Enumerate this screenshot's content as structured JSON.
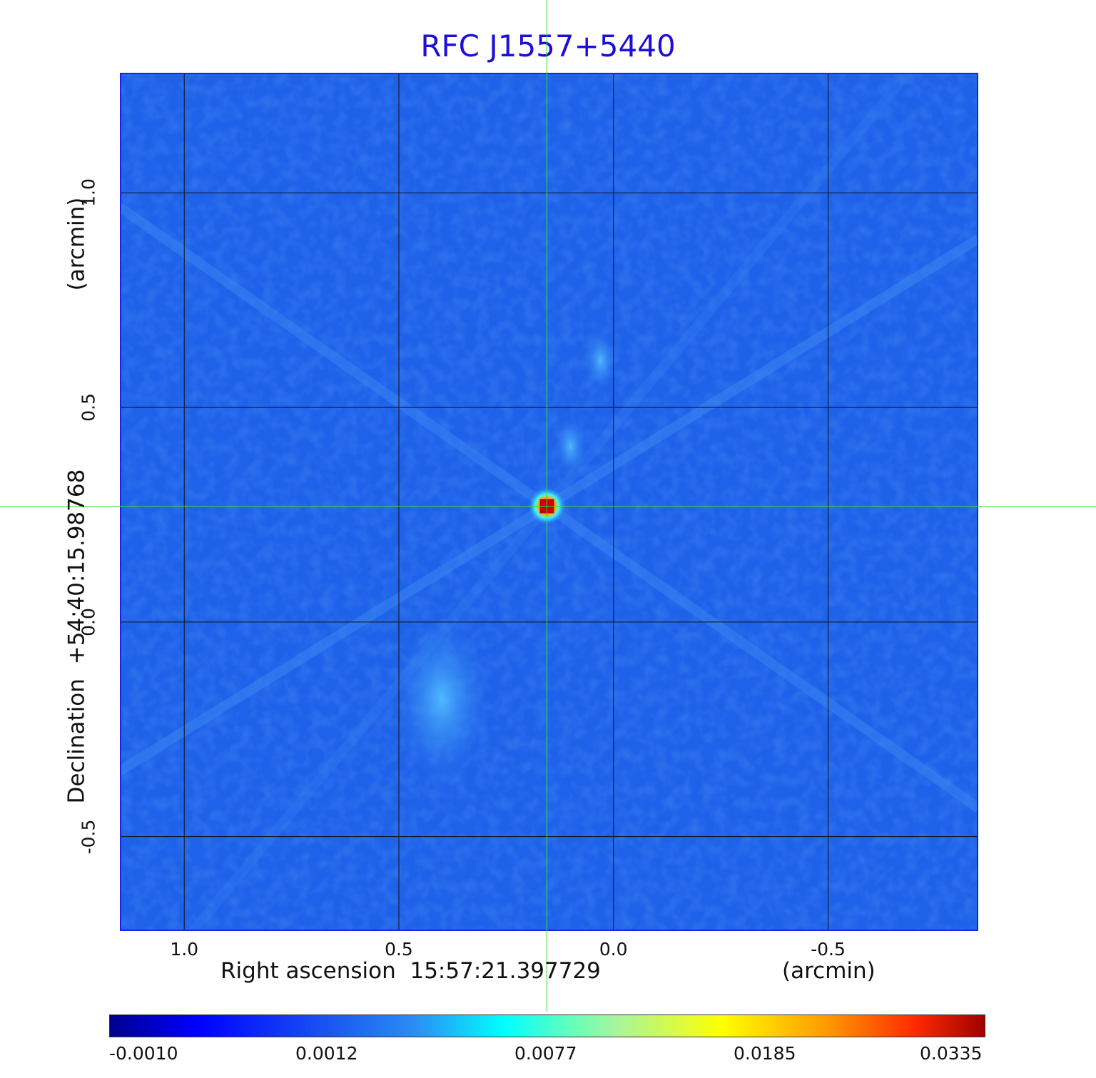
{
  "title": "RFC J1557+5440",
  "axes": {
    "x_label": "Right ascension  15:57:21.397729",
    "x_unit": "(arcmin)",
    "y_label": "Declination  +54:40:15.98768",
    "y_unit": "(arcmin)",
    "x_ticks": [
      "1.0",
      "0.5",
      "0.0",
      "-0.5"
    ],
    "y_ticks": [
      "1.0",
      "0.5",
      "0.0",
      "-0.5"
    ]
  },
  "colorbar": {
    "ticks": [
      "-0.0010",
      "0.0012",
      "0.0077",
      "0.0185",
      "0.0335"
    ],
    "colormap": "jet"
  },
  "colors": {
    "title": "#1c10d8",
    "frame": "#1a22e6",
    "crosshair": "#2fe02f",
    "background_field": "#1f62ea"
  },
  "chart_data": {
    "type": "heatmap",
    "title": "RFC J1557+5440",
    "xlabel": "Right ascension  15:57:21.397729",
    "ylabel": "Declination  +54:40:15.98768",
    "x_unit": "arcmin",
    "y_unit": "arcmin",
    "xlim": [
      1.15,
      -0.85
    ],
    "ylim": [
      -0.72,
      1.28
    ],
    "x_direction": "decreasing",
    "grid": true,
    "colormap": "jet",
    "value_range": [
      -0.001,
      0.0335
    ],
    "colorbar_ticks": [
      -0.001,
      0.0012,
      0.0077,
      0.0185,
      0.0335
    ],
    "crosshair": {
      "x": 0.155,
      "y": 0.27
    },
    "sources": [
      {
        "x": 0.155,
        "y": 0.27,
        "peak": 0.0335
      },
      {
        "x": 0.1,
        "y": 0.41,
        "peak": 0.004
      },
      {
        "x": 0.03,
        "y": 0.61,
        "peak": 0.0025
      },
      {
        "x": 0.4,
        "y": -0.18,
        "peak": 0.002
      }
    ],
    "legend": "colorbar-bottom"
  }
}
